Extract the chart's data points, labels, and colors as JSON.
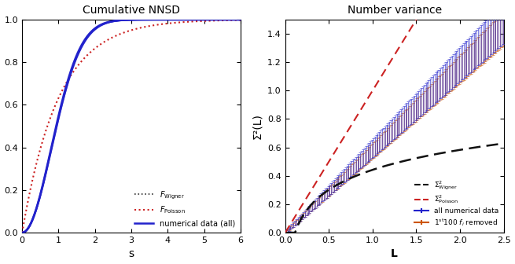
{
  "left_title": "Cumulative NNSD",
  "right_title": "Number variance",
  "left_xlabel": "s",
  "right_xlabel": "L",
  "right_ylabel": "Σ²(L)",
  "left_xlim": [
    0,
    6
  ],
  "left_ylim": [
    0,
    1.0
  ],
  "right_xlim": [
    0,
    2.5
  ],
  "right_ylim": [
    0,
    1.5
  ],
  "wigner_color": "#333333",
  "poisson_color": "#cc2222",
  "blue_data_color": "#2222cc",
  "orange_data_color": "#cc5500",
  "sigma2_wigner_color": "#111111",
  "sigma2_poisson_color": "#cc2222"
}
